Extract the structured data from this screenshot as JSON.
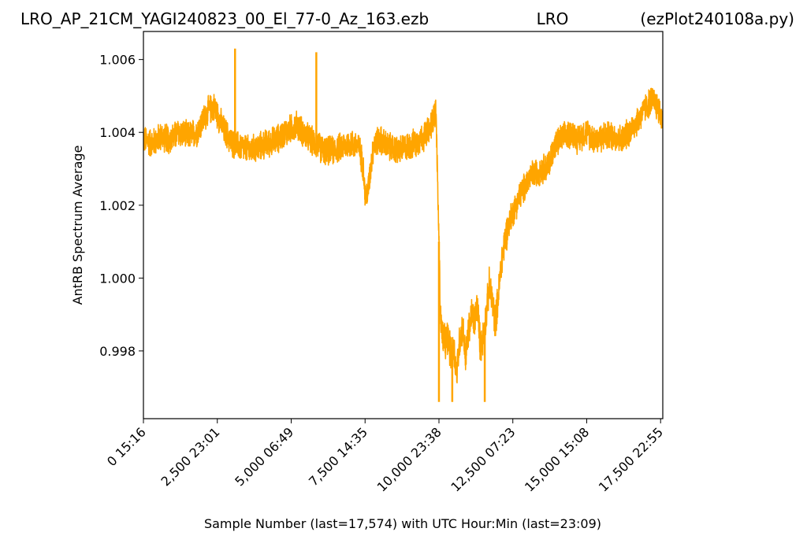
{
  "header": {
    "left": "LRO_AP_21CM_YAGI240823_00_El_77-0_Az_163.ezb",
    "center": "LRO",
    "right": "(ezPlot240108a.py)"
  },
  "chart_data": {
    "type": "line",
    "xlabel": "Sample Number (last=17,574) with UTC Hour:Min (last=23:09)",
    "ylabel": "AntRB Spectrum Average",
    "xlim": [
      0,
      17574
    ],
    "ylim": [
      0.99614,
      1.00677
    ],
    "grid": false,
    "line_color": "#ffa500",
    "x_ticks": [
      {
        "value": 0,
        "label": "0  15:16"
      },
      {
        "value": 2500,
        "label": "2,500  23:01"
      },
      {
        "value": 5000,
        "label": "5,000  06:49"
      },
      {
        "value": 7500,
        "label": "7,500  14:35"
      },
      {
        "value": 10000,
        "label": "10,000  23:38"
      },
      {
        "value": 12500,
        "label": "12,500  07:23"
      },
      {
        "value": 15000,
        "label": "15,000  15:08"
      },
      {
        "value": 17500,
        "label": "17,500  22:55"
      }
    ],
    "y_ticks": [
      {
        "value": 0.998,
        "label": "0.998"
      },
      {
        "value": 1.0,
        "label": "1.000"
      },
      {
        "value": 1.002,
        "label": "1.002"
      },
      {
        "value": 1.004,
        "label": "1.004"
      },
      {
        "value": 1.006,
        "label": "1.006"
      }
    ],
    "series": [
      {
        "x": [
          0,
          300,
          600,
          900,
          1200,
          1500,
          1800,
          2000,
          2200,
          2400,
          2700,
          3000,
          3300,
          3600,
          3900,
          4200,
          4500,
          4800,
          5000,
          5200,
          5500,
          5800,
          6100,
          6400,
          6700,
          7000,
          7300,
          7450,
          7500,
          7600,
          7700,
          7800,
          8000,
          8300,
          8600,
          8900,
          9200,
          9500,
          9700,
          9800,
          9900,
          10000,
          10050,
          10100,
          10200,
          10300,
          10400,
          10500,
          10600,
          10700,
          10800,
          10900,
          11000,
          11100,
          11200,
          11300,
          11400,
          11500,
          11600,
          11700,
          11800,
          11900,
          12000,
          12100,
          12200,
          12300,
          12400,
          12500,
          12700,
          12900,
          13100,
          13300,
          13500,
          13700,
          13900,
          14100,
          14300,
          14500,
          14700,
          14800,
          15000,
          15300,
          15600,
          15900,
          16200,
          16500,
          16800,
          17000,
          17200,
          17400,
          17574
        ],
        "y": [
          1.0038,
          1.0037,
          1.0039,
          1.0038,
          1.004,
          1.0039,
          1.004,
          1.0043,
          1.0046,
          1.0047,
          1.0041,
          1.0037,
          1.0036,
          1.0035,
          1.0036,
          1.0037,
          1.0038,
          1.004,
          1.0041,
          1.0042,
          1.0039,
          1.0037,
          1.0035,
          1.0035,
          1.0036,
          1.0037,
          1.0036,
          1.003,
          1.0022,
          1.0024,
          1.0031,
          1.0037,
          1.0038,
          1.0036,
          1.0035,
          1.0036,
          1.0037,
          1.0039,
          1.0041,
          1.0044,
          1.0046,
          1.001,
          0.999,
          0.9985,
          0.9982,
          0.9984,
          0.9979,
          0.9981,
          0.9974,
          0.9983,
          0.9987,
          0.9978,
          0.9985,
          0.999,
          0.9988,
          0.9993,
          0.9981,
          0.9984,
          0.999,
          0.9998,
          0.9994,
          0.9988,
          0.9994,
          1.0003,
          1.0009,
          1.0013,
          1.0016,
          1.0018,
          1.0022,
          1.0025,
          1.0028,
          1.0029,
          1.003,
          1.0031,
          1.0036,
          1.0038,
          1.0039,
          1.004,
          1.0038,
          1.0039,
          1.004,
          1.0038,
          1.0039,
          1.0039,
          1.0038,
          1.0041,
          1.0044,
          1.0047,
          1.0049,
          1.0047,
          1.0043
        ]
      }
    ],
    "spikes": [
      {
        "x": 3100,
        "y": 1.0063
      },
      {
        "x": 5850,
        "y": 1.0062
      },
      {
        "x": 10000,
        "y": 0.9966
      },
      {
        "x": 10450,
        "y": 0.9966
      },
      {
        "x": 11550,
        "y": 0.9966
      }
    ]
  }
}
